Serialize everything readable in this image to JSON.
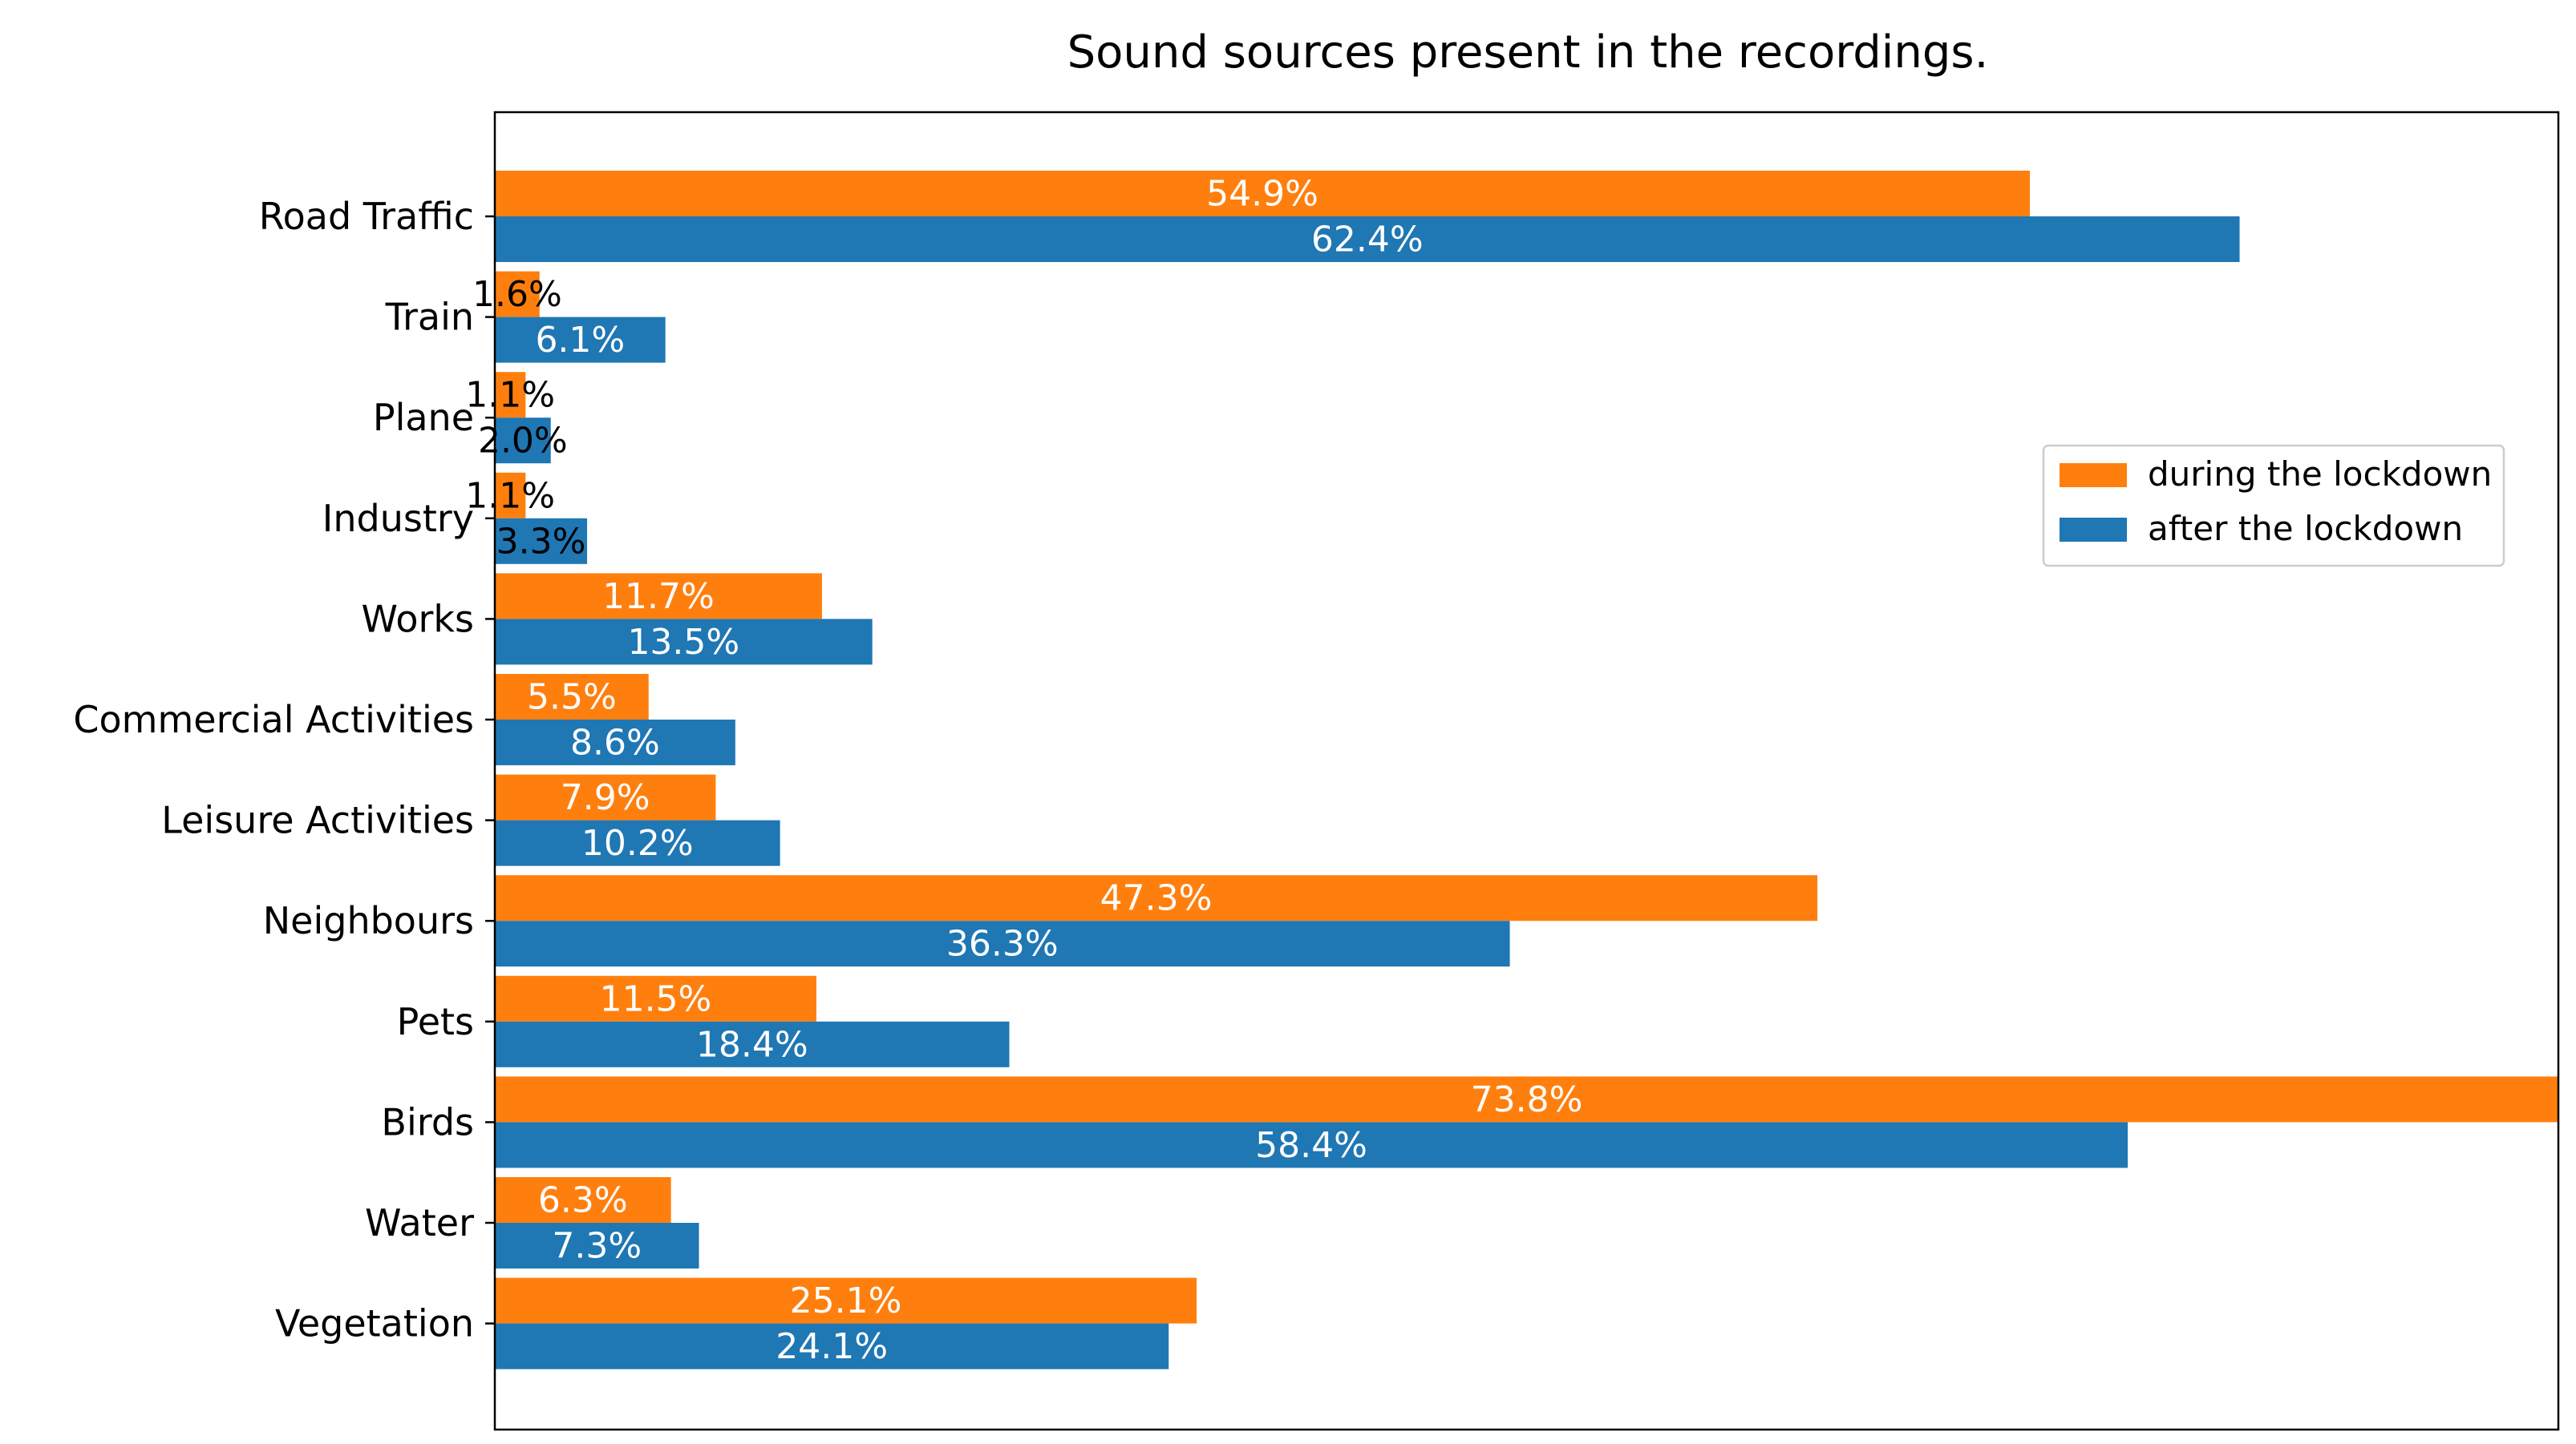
{
  "chart_data": {
    "type": "bar",
    "orientation": "horizontal",
    "title": "Sound sources present in the recordings.",
    "xlabel": "",
    "ylabel": "",
    "xlim": [
      0,
      73.8
    ],
    "grid": false,
    "legend_position": "center-right",
    "categories": [
      "Road Traffic",
      "Train",
      "Plane",
      "Industry",
      "Works",
      "Commercial Activities",
      "Leisure Activities",
      "Neighbours",
      "Pets",
      "Birds",
      "Water",
      "Vegetation"
    ],
    "series": [
      {
        "name": "during the lockdown",
        "color": "#ff7f0e",
        "values": [
          54.9,
          1.6,
          1.1,
          1.1,
          11.7,
          5.5,
          7.9,
          47.3,
          11.5,
          73.8,
          6.3,
          25.1
        ],
        "labels": [
          "54.9%",
          "1.6%",
          "1.1%",
          "1.1%",
          "11.7%",
          "5.5%",
          "7.9%",
          "47.3%",
          "11.5%",
          "73.8%",
          "6.3%",
          "25.1%"
        ],
        "label_colors": [
          "#ffffff",
          "#000000",
          "#000000",
          "#000000",
          "#ffffff",
          "#ffffff",
          "#ffffff",
          "#ffffff",
          "#ffffff",
          "#ffffff",
          "#ffffff",
          "#ffffff"
        ]
      },
      {
        "name": "after the lockdown",
        "color": "#1f77b4",
        "values": [
          62.4,
          6.1,
          2.0,
          3.3,
          13.5,
          8.6,
          10.2,
          36.3,
          18.4,
          58.4,
          7.3,
          24.1
        ],
        "labels": [
          "62.4%",
          "6.1%",
          "2.0%",
          "3.3%",
          "13.5%",
          "8.6%",
          "10.2%",
          "36.3%",
          "18.4%",
          "58.4%",
          "7.3%",
          "24.1%"
        ],
        "label_colors": [
          "#ffffff",
          "#ffffff",
          "#000000",
          "#000000",
          "#ffffff",
          "#ffffff",
          "#ffffff",
          "#ffffff",
          "#ffffff",
          "#ffffff",
          "#ffffff",
          "#ffffff"
        ]
      }
    ]
  }
}
